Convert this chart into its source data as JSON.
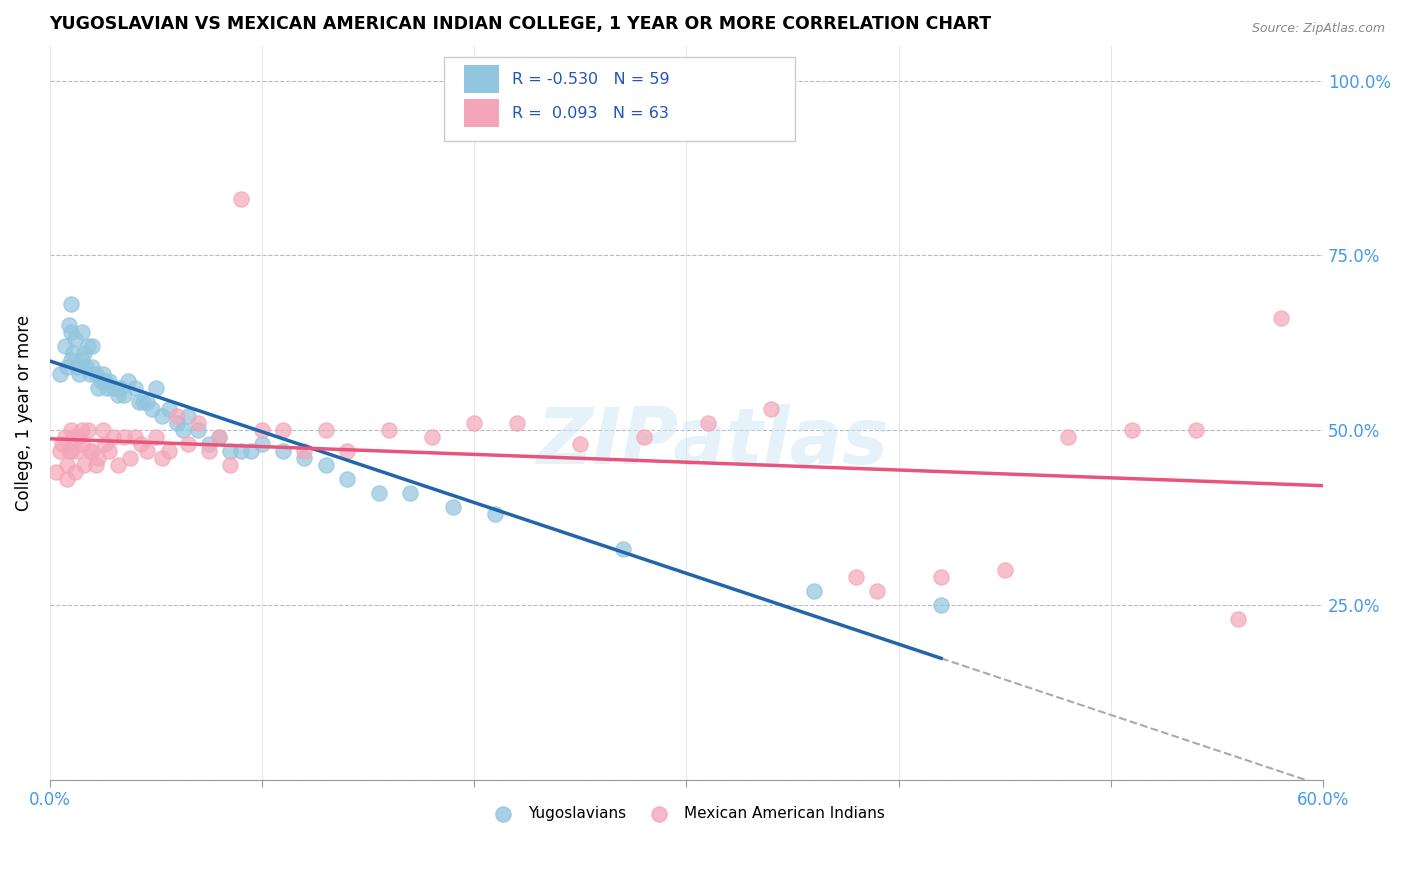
{
  "title": "YUGOSLAVIAN VS MEXICAN AMERICAN INDIAN COLLEGE, 1 YEAR OR MORE CORRELATION CHART",
  "source": "Source: ZipAtlas.com",
  "ylabel": "College, 1 year or more",
  "xlim": [
    0.0,
    0.6
  ],
  "ylim": [
    0.0,
    1.05
  ],
  "xticks": [
    0.0,
    0.1,
    0.2,
    0.3,
    0.4,
    0.5,
    0.6
  ],
  "xticklabels": [
    "0.0%",
    "",
    "",
    "",
    "",
    "",
    "60.0%"
  ],
  "yticks": [
    0.0,
    0.25,
    0.5,
    0.75,
    1.0
  ],
  "yticklabels": [
    "",
    "25.0%",
    "50.0%",
    "75.0%",
    "100.0%"
  ],
  "blue_color": "#92c5de",
  "pink_color": "#f4a6b8",
  "blue_line_color": "#2166ac",
  "pink_line_color": "#e8547a",
  "grid_color": "#bbbbbb",
  "watermark": "ZIPatlas",
  "blue_scatter_x": [
    0.005,
    0.007,
    0.008,
    0.009,
    0.01,
    0.01,
    0.01,
    0.011,
    0.012,
    0.013,
    0.014,
    0.015,
    0.015,
    0.016,
    0.017,
    0.018,
    0.019,
    0.02,
    0.02,
    0.022,
    0.023,
    0.024,
    0.025,
    0.026,
    0.027,
    0.028,
    0.03,
    0.032,
    0.033,
    0.035,
    0.037,
    0.04,
    0.042,
    0.044,
    0.046,
    0.048,
    0.05,
    0.053,
    0.056,
    0.06,
    0.063,
    0.065,
    0.07,
    0.075,
    0.08,
    0.085,
    0.09,
    0.095,
    0.1,
    0.11,
    0.12,
    0.13,
    0.14,
    0.155,
    0.17,
    0.19,
    0.21,
    0.27,
    0.36,
    0.42
  ],
  "blue_scatter_y": [
    0.58,
    0.62,
    0.59,
    0.65,
    0.68,
    0.64,
    0.6,
    0.61,
    0.63,
    0.59,
    0.58,
    0.64,
    0.6,
    0.61,
    0.59,
    0.62,
    0.58,
    0.62,
    0.59,
    0.58,
    0.56,
    0.57,
    0.58,
    0.57,
    0.56,
    0.57,
    0.56,
    0.55,
    0.56,
    0.55,
    0.57,
    0.56,
    0.54,
    0.54,
    0.54,
    0.53,
    0.56,
    0.52,
    0.53,
    0.51,
    0.5,
    0.52,
    0.5,
    0.48,
    0.49,
    0.47,
    0.47,
    0.47,
    0.48,
    0.47,
    0.46,
    0.45,
    0.43,
    0.41,
    0.41,
    0.39,
    0.38,
    0.33,
    0.27,
    0.25
  ],
  "pink_scatter_x": [
    0.003,
    0.005,
    0.006,
    0.007,
    0.008,
    0.008,
    0.009,
    0.01,
    0.01,
    0.011,
    0.012,
    0.013,
    0.014,
    0.015,
    0.015,
    0.016,
    0.018,
    0.019,
    0.02,
    0.022,
    0.023,
    0.025,
    0.026,
    0.028,
    0.03,
    0.032,
    0.035,
    0.038,
    0.04,
    0.043,
    0.046,
    0.05,
    0.053,
    0.056,
    0.06,
    0.065,
    0.07,
    0.075,
    0.08,
    0.085,
    0.09,
    0.1,
    0.11,
    0.12,
    0.13,
    0.14,
    0.16,
    0.18,
    0.2,
    0.22,
    0.25,
    0.28,
    0.31,
    0.34,
    0.38,
    0.39,
    0.42,
    0.45,
    0.48,
    0.51,
    0.54,
    0.56,
    0.58
  ],
  "pink_scatter_y": [
    0.44,
    0.47,
    0.48,
    0.49,
    0.45,
    0.43,
    0.47,
    0.47,
    0.5,
    0.49,
    0.44,
    0.47,
    0.49,
    0.5,
    0.48,
    0.45,
    0.5,
    0.47,
    0.47,
    0.45,
    0.46,
    0.5,
    0.48,
    0.47,
    0.49,
    0.45,
    0.49,
    0.46,
    0.49,
    0.48,
    0.47,
    0.49,
    0.46,
    0.47,
    0.52,
    0.48,
    0.51,
    0.47,
    0.49,
    0.45,
    0.83,
    0.5,
    0.5,
    0.47,
    0.5,
    0.47,
    0.5,
    0.49,
    0.51,
    0.51,
    0.48,
    0.49,
    0.51,
    0.53,
    0.29,
    0.27,
    0.29,
    0.3,
    0.49,
    0.5,
    0.5,
    0.23,
    0.66
  ]
}
